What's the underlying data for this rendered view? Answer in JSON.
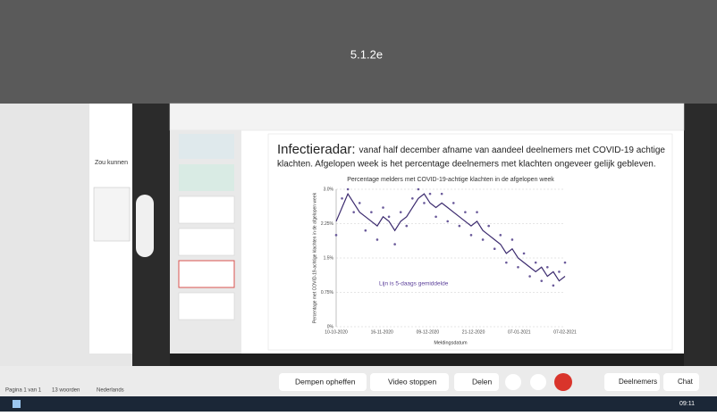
{
  "banner": {
    "title": "5.1.2e"
  },
  "word": {
    "sidebar_text": "Zou kunnen",
    "status": [
      "Pagina 1 van 1",
      "13 woorden",
      "Nederlands"
    ]
  },
  "slide": {
    "title_bold": "Infectieradar:",
    "title_lines": [
      "vanaf half december afname van aandeel deelnemers met COVID-19 achtige",
      "klachten. Afgelopen week is het percentage deelnemers met klachten ongeveer gelijk gebleven."
    ]
  },
  "chart_data": {
    "type": "line",
    "title": "Percentage melders met COVID-19-achtige klachten in de afgelopen week",
    "y_label": "Percentage met COVID-19-achtige klachten in de afgelopen week",
    "x_label": "Meldingsdatum",
    "annotation": "Lijn is 5-daags gemiddelde",
    "xtick_labels": [
      "10-10-2020",
      "16-11-2020",
      "09-12-2020",
      "21-12-2020",
      "07-01-2021",
      "07-02-2021"
    ],
    "ylim": [
      0,
      3
    ],
    "yticks": [
      {
        "value": 0,
        "label": "0%"
      },
      {
        "value": 0.75,
        "label": "0.75%"
      },
      {
        "value": 1.5,
        "label": "1.5%"
      },
      {
        "value": 2.25,
        "label": "2.25%"
      },
      {
        "value": 3,
        "label": "3.0%"
      }
    ],
    "grid": true,
    "series": [
      {
        "color": "#3b2a6e",
        "values": [
          2.3,
          2.6,
          2.9,
          2.7,
          2.5,
          2.4,
          2.3,
          2.2,
          2.4,
          2.3,
          2.1,
          2.3,
          2.4,
          2.6,
          2.8,
          2.9,
          2.7,
          2.6,
          2.7,
          2.6,
          2.5,
          2.4,
          2.3,
          2.2,
          2.3,
          2.1,
          2.0,
          1.9,
          1.8,
          1.6,
          1.7,
          1.5,
          1.4,
          1.3,
          1.2,
          1.3,
          1.1,
          1.2,
          1.0,
          1.1
        ]
      }
    ],
    "points": {
      "color": "#6a5a9a",
      "values": [
        2.0,
        2.8,
        3.0,
        2.5,
        2.7,
        2.1,
        2.5,
        1.9,
        2.6,
        2.4,
        1.8,
        2.5,
        2.2,
        2.8,
        3.0,
        2.7,
        2.9,
        2.4,
        2.9,
        2.3,
        2.7,
        2.2,
        2.5,
        2.0,
        2.5,
        1.9,
        2.2,
        1.7,
        2.0,
        1.4,
        1.9,
        1.3,
        1.6,
        1.1,
        1.4,
        1.0,
        1.3,
        0.9,
        1.2,
        1.4
      ]
    }
  },
  "teams": {
    "buttons": [
      "Dempen opheffen",
      "Video stoppen",
      "Delen",
      "Deelnemers",
      "Chat"
    ]
  },
  "taskbar": {
    "time": "09:11"
  }
}
